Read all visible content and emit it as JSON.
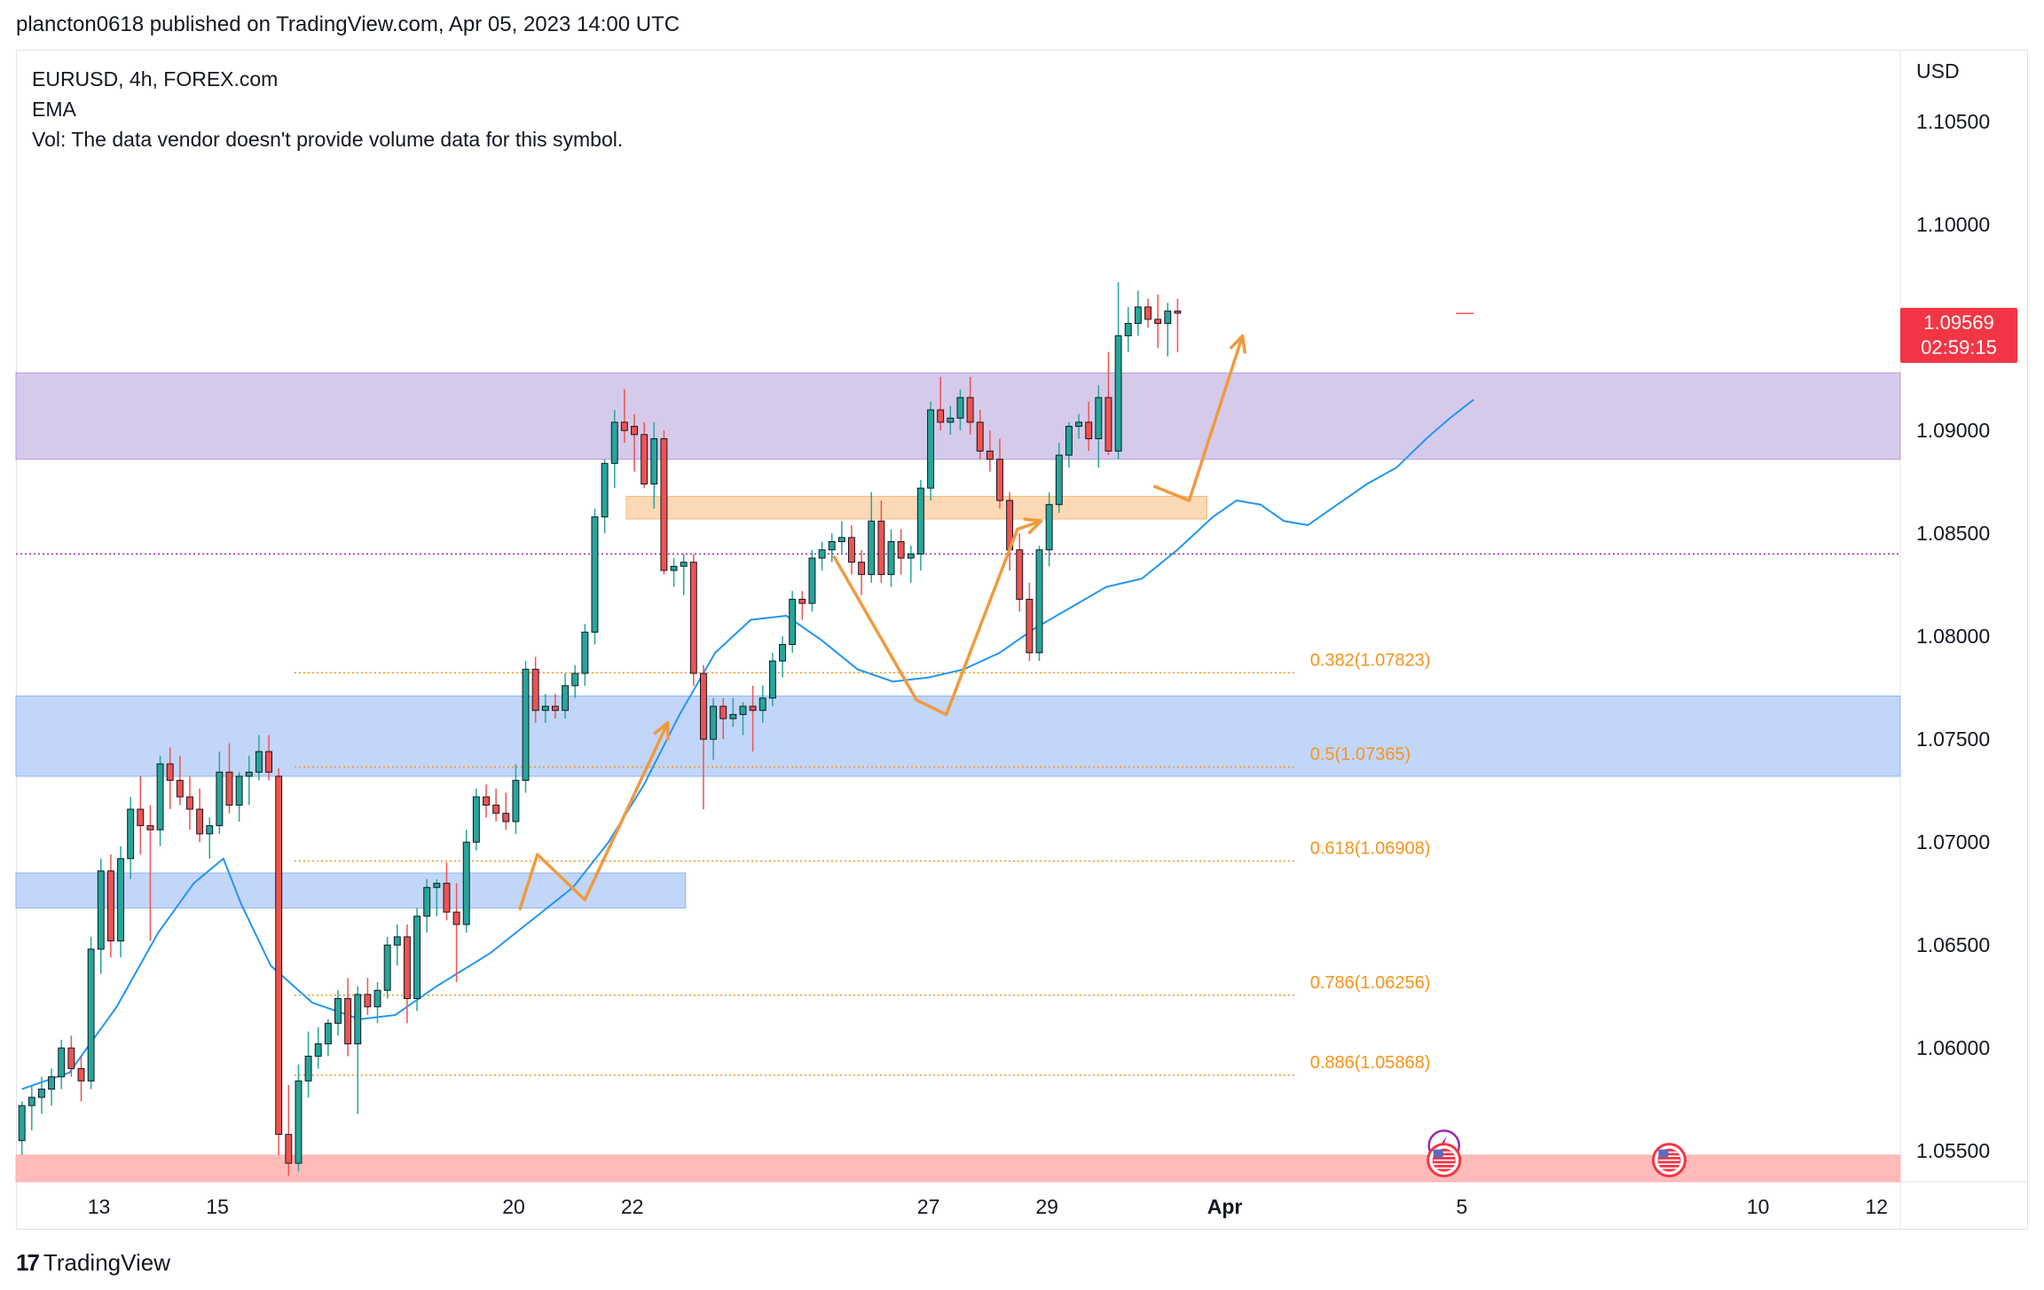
{
  "header": {
    "published_text": "plancton0618 published on TradingView.com, Apr 05, 2023 14:00 UTC"
  },
  "legend": {
    "symbol_line": "EURUSD, 4h, FOREX.com",
    "indicator": "EMA",
    "volume_note": "Vol: The data vendor doesn't provide volume data for this symbol."
  },
  "price_axis": {
    "currency": "USD"
  },
  "last_price": {
    "price": "1.09569",
    "countdown": "02:59:15"
  },
  "brand": {
    "logo": "17",
    "name": "TradingView"
  },
  "colors": {
    "up": "#26a69a",
    "down": "#ef5350",
    "ema": "#2196f3",
    "fib": "#f7931a",
    "resistance_zone": "#d1c4e9",
    "support_zone": "#bbd2f8",
    "order_block": "#fbd5ad",
    "bottom_zone": "#ffb3b3"
  },
  "chart_data": {
    "type": "candlestick",
    "title": "EURUSD, 4h, FOREX.com",
    "ylabel": "USD",
    "ylim": [
      1.0535,
      1.1085
    ],
    "yticks": [
      "1.10500",
      "1.10000",
      "1.09500",
      "1.09000",
      "1.08500",
      "1.08000",
      "1.07500",
      "1.07000",
      "1.06500",
      "1.06000",
      "1.05500"
    ],
    "xlim_days": [
      11.6,
      43.4
    ],
    "xticks": [
      {
        "day": 13,
        "label": "13"
      },
      {
        "day": 15,
        "label": "15"
      },
      {
        "day": 20,
        "label": "20"
      },
      {
        "day": 22,
        "label": "22"
      },
      {
        "day": 27,
        "label": "27"
      },
      {
        "day": 29,
        "label": "29"
      },
      {
        "day": 32,
        "label": "Apr"
      },
      {
        "day": 36,
        "label": "5"
      },
      {
        "day": 41,
        "label": "10"
      },
      {
        "day": 43,
        "label": "12"
      }
    ],
    "candles_start_day": 11.7,
    "candle_step_days": 0.1667,
    "candles": [
      [
        1.0555,
        1.0574,
        1.0548,
        1.0572
      ],
      [
        1.0572,
        1.0582,
        1.056,
        1.0576
      ],
      [
        1.0576,
        1.0586,
        1.0568,
        1.058
      ],
      [
        1.058,
        1.059,
        1.0572,
        1.0586
      ],
      [
        1.0586,
        1.0604,
        1.058,
        1.06
      ],
      [
        1.06,
        1.0606,
        1.0586,
        1.059
      ],
      [
        1.059,
        1.0596,
        1.0574,
        1.0584
      ],
      [
        1.0584,
        1.0654,
        1.058,
        1.0648
      ],
      [
        1.0648,
        1.0692,
        1.0636,
        1.0686
      ],
      [
        1.0686,
        1.0694,
        1.0644,
        1.0652
      ],
      [
        1.0652,
        1.0698,
        1.0644,
        1.0692
      ],
      [
        1.0692,
        1.0722,
        1.0682,
        1.0716
      ],
      [
        1.0716,
        1.0732,
        1.0694,
        1.0708
      ],
      [
        1.0708,
        1.0718,
        1.0652,
        1.0706
      ],
      [
        1.0706,
        1.0742,
        1.0698,
        1.0738
      ],
      [
        1.0738,
        1.0746,
        1.0716,
        1.073
      ],
      [
        1.073,
        1.0742,
        1.0718,
        1.0722
      ],
      [
        1.0722,
        1.0732,
        1.0706,
        1.0716
      ],
      [
        1.0716,
        1.0726,
        1.07,
        1.0704
      ],
      [
        1.0704,
        1.0712,
        1.0692,
        1.0708
      ],
      [
        1.0708,
        1.0744,
        1.0704,
        1.0734
      ],
      [
        1.0734,
        1.0748,
        1.0714,
        1.0718
      ],
      [
        1.0718,
        1.0734,
        1.071,
        1.0732
      ],
      [
        1.0732,
        1.0742,
        1.0718,
        1.0734
      ],
      [
        1.0734,
        1.0752,
        1.073,
        1.0744
      ],
      [
        1.0744,
        1.0752,
        1.073,
        1.0734
      ],
      [
        1.0732,
        1.0736,
        1.0548,
        1.0558
      ],
      [
        1.0558,
        1.0582,
        1.0538,
        1.0544
      ],
      [
        1.0544,
        1.0592,
        1.054,
        1.0584
      ],
      [
        1.0584,
        1.0608,
        1.0576,
        1.0596
      ],
      [
        1.0596,
        1.061,
        1.059,
        1.0602
      ],
      [
        1.0602,
        1.0614,
        1.0596,
        1.0612
      ],
      [
        1.0612,
        1.0628,
        1.0606,
        1.0624
      ],
      [
        1.0624,
        1.0634,
        1.0596,
        1.0602
      ],
      [
        1.0602,
        1.063,
        1.0568,
        1.0626
      ],
      [
        1.0626,
        1.0634,
        1.0616,
        1.062
      ],
      [
        1.062,
        1.0632,
        1.0612,
        1.0628
      ],
      [
        1.0628,
        1.0654,
        1.0624,
        1.065
      ],
      [
        1.065,
        1.066,
        1.064,
        1.0654
      ],
      [
        1.0654,
        1.066,
        1.0612,
        1.0624
      ],
      [
        1.0624,
        1.0668,
        1.0618,
        1.0664
      ],
      [
        1.0664,
        1.0682,
        1.0656,
        1.0678
      ],
      [
        1.0678,
        1.0682,
        1.0664,
        1.068
      ],
      [
        1.068,
        1.069,
        1.0662,
        1.0666
      ],
      [
        1.0666,
        1.068,
        1.0632,
        1.066
      ],
      [
        1.066,
        1.0706,
        1.0656,
        1.07
      ],
      [
        1.07,
        1.0726,
        1.0696,
        1.0722
      ],
      [
        1.0722,
        1.0728,
        1.0712,
        1.0718
      ],
      [
        1.0718,
        1.0726,
        1.071,
        1.0714
      ],
      [
        1.0714,
        1.0724,
        1.0706,
        1.071
      ],
      [
        1.071,
        1.0738,
        1.0704,
        1.073
      ],
      [
        1.073,
        1.0788,
        1.0724,
        1.0784
      ],
      [
        1.0784,
        1.079,
        1.0758,
        1.0764
      ],
      [
        1.0764,
        1.0772,
        1.0758,
        1.0766
      ],
      [
        1.0766,
        1.0772,
        1.076,
        1.0764
      ],
      [
        1.0764,
        1.0782,
        1.076,
        1.0776
      ],
      [
        1.0776,
        1.0786,
        1.077,
        1.0782
      ],
      [
        1.0782,
        1.0806,
        1.0776,
        1.0802
      ],
      [
        1.0802,
        1.0862,
        1.0796,
        1.0858
      ],
      [
        1.0858,
        1.0886,
        1.085,
        1.0884
      ],
      [
        1.0884,
        1.091,
        1.0872,
        1.0904
      ],
      [
        1.0904,
        1.092,
        1.0894,
        1.09
      ],
      [
        1.0902,
        1.0908,
        1.088,
        1.0898
      ],
      [
        1.0898,
        1.0904,
        1.0872,
        1.0874
      ],
      [
        1.0874,
        1.0904,
        1.0862,
        1.0896
      ],
      [
        1.0896,
        1.09,
        1.083,
        1.0832
      ],
      [
        1.0832,
        1.0838,
        1.0824,
        1.0834
      ],
      [
        1.0834,
        1.084,
        1.082,
        1.0836
      ],
      [
        1.0836,
        1.084,
        1.0776,
        1.0782
      ],
      [
        1.0782,
        1.0786,
        1.0716,
        1.075
      ],
      [
        1.075,
        1.077,
        1.074,
        1.0766
      ],
      [
        1.0766,
        1.077,
        1.075,
        1.076
      ],
      [
        1.076,
        1.077,
        1.0756,
        1.0762
      ],
      [
        1.0762,
        1.0768,
        1.0752,
        1.0766
      ],
      [
        1.0766,
        1.0776,
        1.0744,
        1.0764
      ],
      [
        1.0764,
        1.0776,
        1.0758,
        1.077
      ],
      [
        1.077,
        1.0792,
        1.0766,
        1.0788
      ],
      [
        1.0788,
        1.08,
        1.078,
        1.0796
      ],
      [
        1.0796,
        1.0822,
        1.0792,
        1.0818
      ],
      [
        1.0818,
        1.0822,
        1.0808,
        1.0816
      ],
      [
        1.0816,
        1.0842,
        1.0812,
        1.0838
      ],
      [
        1.0838,
        1.0846,
        1.0832,
        1.0842
      ],
      [
        1.0842,
        1.085,
        1.0836,
        1.0846
      ],
      [
        1.0846,
        1.0856,
        1.084,
        1.0848
      ],
      [
        1.0848,
        1.0854,
        1.083,
        1.0836
      ],
      [
        1.0836,
        1.0842,
        1.082,
        1.083
      ],
      [
        1.083,
        1.087,
        1.0826,
        1.0856
      ],
      [
        1.0856,
        1.0866,
        1.0826,
        1.083
      ],
      [
        1.083,
        1.0852,
        1.0824,
        1.0846
      ],
      [
        1.0846,
        1.0852,
        1.083,
        1.0838
      ],
      [
        1.0838,
        1.0844,
        1.0826,
        1.084
      ],
      [
        1.084,
        1.0876,
        1.0832,
        1.0872
      ],
      [
        1.0872,
        1.0914,
        1.0866,
        1.091
      ],
      [
        1.091,
        1.0926,
        1.09,
        1.0904
      ],
      [
        1.0904,
        1.0912,
        1.0898,
        1.0906
      ],
      [
        1.0906,
        1.092,
        1.09,
        1.0916
      ],
      [
        1.0916,
        1.0926,
        1.0898,
        1.0904
      ],
      [
        1.0904,
        1.091,
        1.0886,
        1.089
      ],
      [
        1.089,
        1.09,
        1.088,
        1.0886
      ],
      [
        1.0886,
        1.0896,
        1.0862,
        1.0866
      ],
      [
        1.0866,
        1.087,
        1.0832,
        1.0842
      ],
      [
        1.0842,
        1.085,
        1.0812,
        1.0818
      ],
      [
        1.0818,
        1.0826,
        1.0788,
        1.0792
      ],
      [
        1.0792,
        1.0844,
        1.0788,
        1.0842
      ],
      [
        1.0842,
        1.087,
        1.0834,
        1.0864
      ],
      [
        1.0864,
        1.0894,
        1.086,
        1.0888
      ],
      [
        1.0888,
        1.0904,
        1.0882,
        1.0902
      ],
      [
        1.0902,
        1.0908,
        1.0896,
        1.0904
      ],
      [
        1.0904,
        1.0914,
        1.089,
        1.0896
      ],
      [
        1.0896,
        1.0922,
        1.0882,
        1.0916
      ],
      [
        1.0916,
        1.0938,
        1.0888,
        1.089
      ],
      [
        1.089,
        1.0972,
        1.0886,
        1.0946
      ],
      [
        1.0946,
        1.096,
        1.0938,
        1.0952
      ],
      [
        1.0952,
        1.0968,
        1.0946,
        1.096
      ],
      [
        1.096,
        1.0964,
        1.095,
        1.0954
      ],
      [
        1.0954,
        1.0966,
        1.094,
        1.0952
      ],
      [
        1.0952,
        1.0962,
        1.0936,
        1.0958
      ],
      [
        1.0958,
        1.0964,
        1.0938,
        1.0957
      ]
    ],
    "ema": [
      [
        11.7,
        1.058
      ],
      [
        12.5,
        1.0588
      ],
      [
        13.3,
        1.062
      ],
      [
        14.0,
        1.0656
      ],
      [
        14.6,
        1.068
      ],
      [
        15.1,
        1.0692
      ],
      [
        15.4,
        1.067
      ],
      [
        15.9,
        1.064
      ],
      [
        16.6,
        1.0622
      ],
      [
        17.4,
        1.0614
      ],
      [
        18.0,
        1.0616
      ],
      [
        18.7,
        1.063
      ],
      [
        19.6,
        1.0646
      ],
      [
        20.3,
        1.0662
      ],
      [
        21.0,
        1.0678
      ],
      [
        21.6,
        1.07
      ],
      [
        22.2,
        1.0728
      ],
      [
        22.8,
        1.0762
      ],
      [
        23.4,
        1.0792
      ],
      [
        24.0,
        1.0808
      ],
      [
        24.6,
        1.081
      ],
      [
        25.2,
        1.0798
      ],
      [
        25.8,
        1.0784
      ],
      [
        26.4,
        1.0778
      ],
      [
        27.0,
        1.078
      ],
      [
        27.6,
        1.0784
      ],
      [
        28.2,
        1.0792
      ],
      [
        28.8,
        1.0804
      ],
      [
        29.4,
        1.0814
      ],
      [
        30.0,
        1.0824
      ],
      [
        30.6,
        1.0828
      ],
      [
        31.2,
        1.0842
      ],
      [
        31.8,
        1.0858
      ],
      [
        32.2,
        1.0866
      ],
      [
        32.6,
        1.0864
      ],
      [
        33.0,
        1.0856
      ],
      [
        33.4,
        1.0854
      ],
      [
        33.9,
        1.0864
      ],
      [
        34.4,
        1.0874
      ],
      [
        34.9,
        1.0882
      ],
      [
        35.4,
        1.0896
      ],
      [
        35.8,
        1.0906
      ],
      [
        36.2,
        1.0915
      ]
    ],
    "zones": [
      {
        "name": "resistance",
        "y0": 1.0886,
        "y1": 1.0928,
        "x0": 11.6,
        "x1": 43.4
      },
      {
        "name": "support",
        "y0": 1.0732,
        "y1": 1.0771,
        "x0": 11.6,
        "x1": 43.4
      },
      {
        "name": "lower-demand",
        "y0": 1.0668,
        "y1": 1.0685,
        "x0": 11.6,
        "x1": 22.9
      },
      {
        "name": "order-block",
        "y0": 1.0857,
        "y1": 1.0868,
        "x0": 21.9,
        "x1": 31.7
      },
      {
        "name": "bottom",
        "y0": 1.0535,
        "y1": 1.0548,
        "x0": 11.6,
        "x1": 43.4
      }
    ],
    "fib_levels": [
      {
        "label": "0.382(1.07823)",
        "price": 1.07823
      },
      {
        "label": "0.5(1.07365)",
        "price": 1.07365
      },
      {
        "label": "0.618(1.06908)",
        "price": 1.06908
      },
      {
        "label": "0.786(1.06256)",
        "price": 1.06256
      },
      {
        "label": "0.886(1.05868)",
        "price": 1.05868
      }
    ],
    "fib_x": [
      16.3,
      33.2
    ],
    "horizontal_line": 1.084,
    "zigzag_paths": [
      [
        [
          20.1,
          1.0667
        ],
        [
          20.4,
          1.0694
        ],
        [
          21.2,
          1.0672
        ],
        [
          22.6,
          1.0758
        ]
      ],
      [
        [
          25.4,
          1.0839
        ],
        [
          26.8,
          1.0769
        ],
        [
          27.3,
          1.0762
        ],
        [
          28.5,
          1.0852
        ],
        [
          28.9,
          1.0856
        ]
      ],
      [
        [
          30.8,
          1.0873
        ],
        [
          31.4,
          1.0866
        ],
        [
          32.3,
          1.0946
        ]
      ]
    ],
    "event_icons": [
      {
        "name": "lightning-event",
        "day": 35.7,
        "price": 1.05525
      },
      {
        "name": "us-event",
        "day": 35.7,
        "price": 1.05455
      },
      {
        "name": "us-event",
        "day": 39.5,
        "price": 1.05455
      }
    ]
  }
}
